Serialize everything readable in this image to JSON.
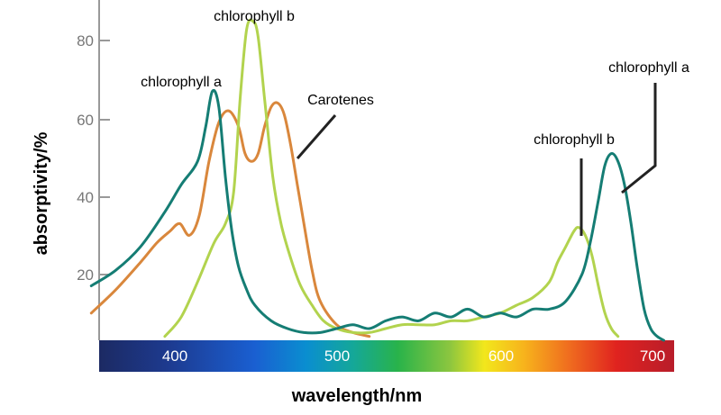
{
  "chart_data": {
    "type": "line",
    "xlabel": "wavelength/nm",
    "ylabel": "absorptivity/%",
    "xlim": [
      350,
      700
    ],
    "ylim": [
      0,
      88
    ],
    "y_ticks": [
      20,
      40,
      60,
      80
    ],
    "x_ticks": [
      400,
      500,
      600,
      700
    ],
    "colors": {
      "chlorophyll_a": "#157d74",
      "chlorophyll_b": "#b2d34e",
      "carotenes": "#d9873c",
      "axis": "#999999"
    },
    "series": [
      {
        "key": "chlorophyll_a",
        "x": [
          350,
          365,
          380,
          395,
          405,
          415,
          420,
          424,
          428,
          432,
          436,
          440,
          445,
          450,
          460,
          470,
          480,
          490,
          500,
          510,
          520,
          530,
          540,
          550,
          560,
          570,
          580,
          590,
          600,
          610,
          620,
          630,
          640,
          650,
          655,
          660,
          664,
          668,
          672,
          676,
          680,
          684,
          688,
          692,
          696,
          700
        ],
        "y": [
          14,
          18,
          24,
          33,
          40,
          46,
          55,
          64,
          60,
          42,
          28,
          19,
          13,
          9,
          5,
          3,
          2,
          2,
          3,
          4,
          3,
          5,
          6,
          5,
          7,
          6,
          8,
          6,
          7,
          6,
          8,
          8,
          10,
          17,
          25,
          36,
          45,
          48,
          46,
          40,
          30,
          18,
          8,
          3,
          1,
          0
        ]
      },
      {
        "key": "chlorophyll_b",
        "x": [
          395,
          405,
          415,
          425,
          432,
          437,
          441,
          445,
          449,
          452,
          456,
          461,
          466,
          472,
          478,
          485,
          492,
          500,
          510,
          520,
          530,
          540,
          550,
          560,
          570,
          580,
          590,
          600,
          610,
          620,
          630,
          635,
          640,
          645,
          648,
          652,
          656,
          660,
          664,
          668,
          672
        ],
        "y": [
          1,
          6,
          15,
          25,
          30,
          38,
          62,
          80,
          82,
          78,
          62,
          42,
          30,
          21,
          14,
          9,
          5,
          3,
          2,
          2,
          3,
          4,
          4,
          4,
          5,
          5,
          6,
          7,
          9,
          11,
          15,
          20,
          24,
          28,
          29,
          27,
          22,
          14,
          7,
          3,
          1
        ]
      },
      {
        "key": "carotenes",
        "x": [
          350,
          365,
          380,
          390,
          398,
          404,
          410,
          416,
          422,
          428,
          434,
          440,
          444,
          448,
          452,
          456,
          460,
          464,
          468,
          472,
          476,
          480,
          485,
          490,
          500,
          510,
          520
        ],
        "y": [
          7,
          13,
          20,
          25,
          28,
          30,
          27,
          32,
          46,
          56,
          59,
          55,
          48,
          46,
          48,
          55,
          60,
          61,
          58,
          50,
          40,
          30,
          18,
          10,
          4,
          2,
          1
        ]
      }
    ],
    "annotations": [
      {
        "text": "chlorophyll a",
        "series": "chlorophyll_a"
      },
      {
        "text": "chlorophyll b",
        "series": "chlorophyll_b"
      },
      {
        "text": "Carotenes",
        "series": "carotenes"
      },
      {
        "text": "chlorophyll b",
        "series": "chlorophyll_b"
      },
      {
        "text": "chlorophyll a",
        "series": "chlorophyll_a"
      }
    ],
    "spectrum_labels": [
      "400",
      "500",
      "600",
      "700"
    ],
    "y_tick_labels": [
      "20",
      "40",
      "60",
      "80"
    ]
  }
}
